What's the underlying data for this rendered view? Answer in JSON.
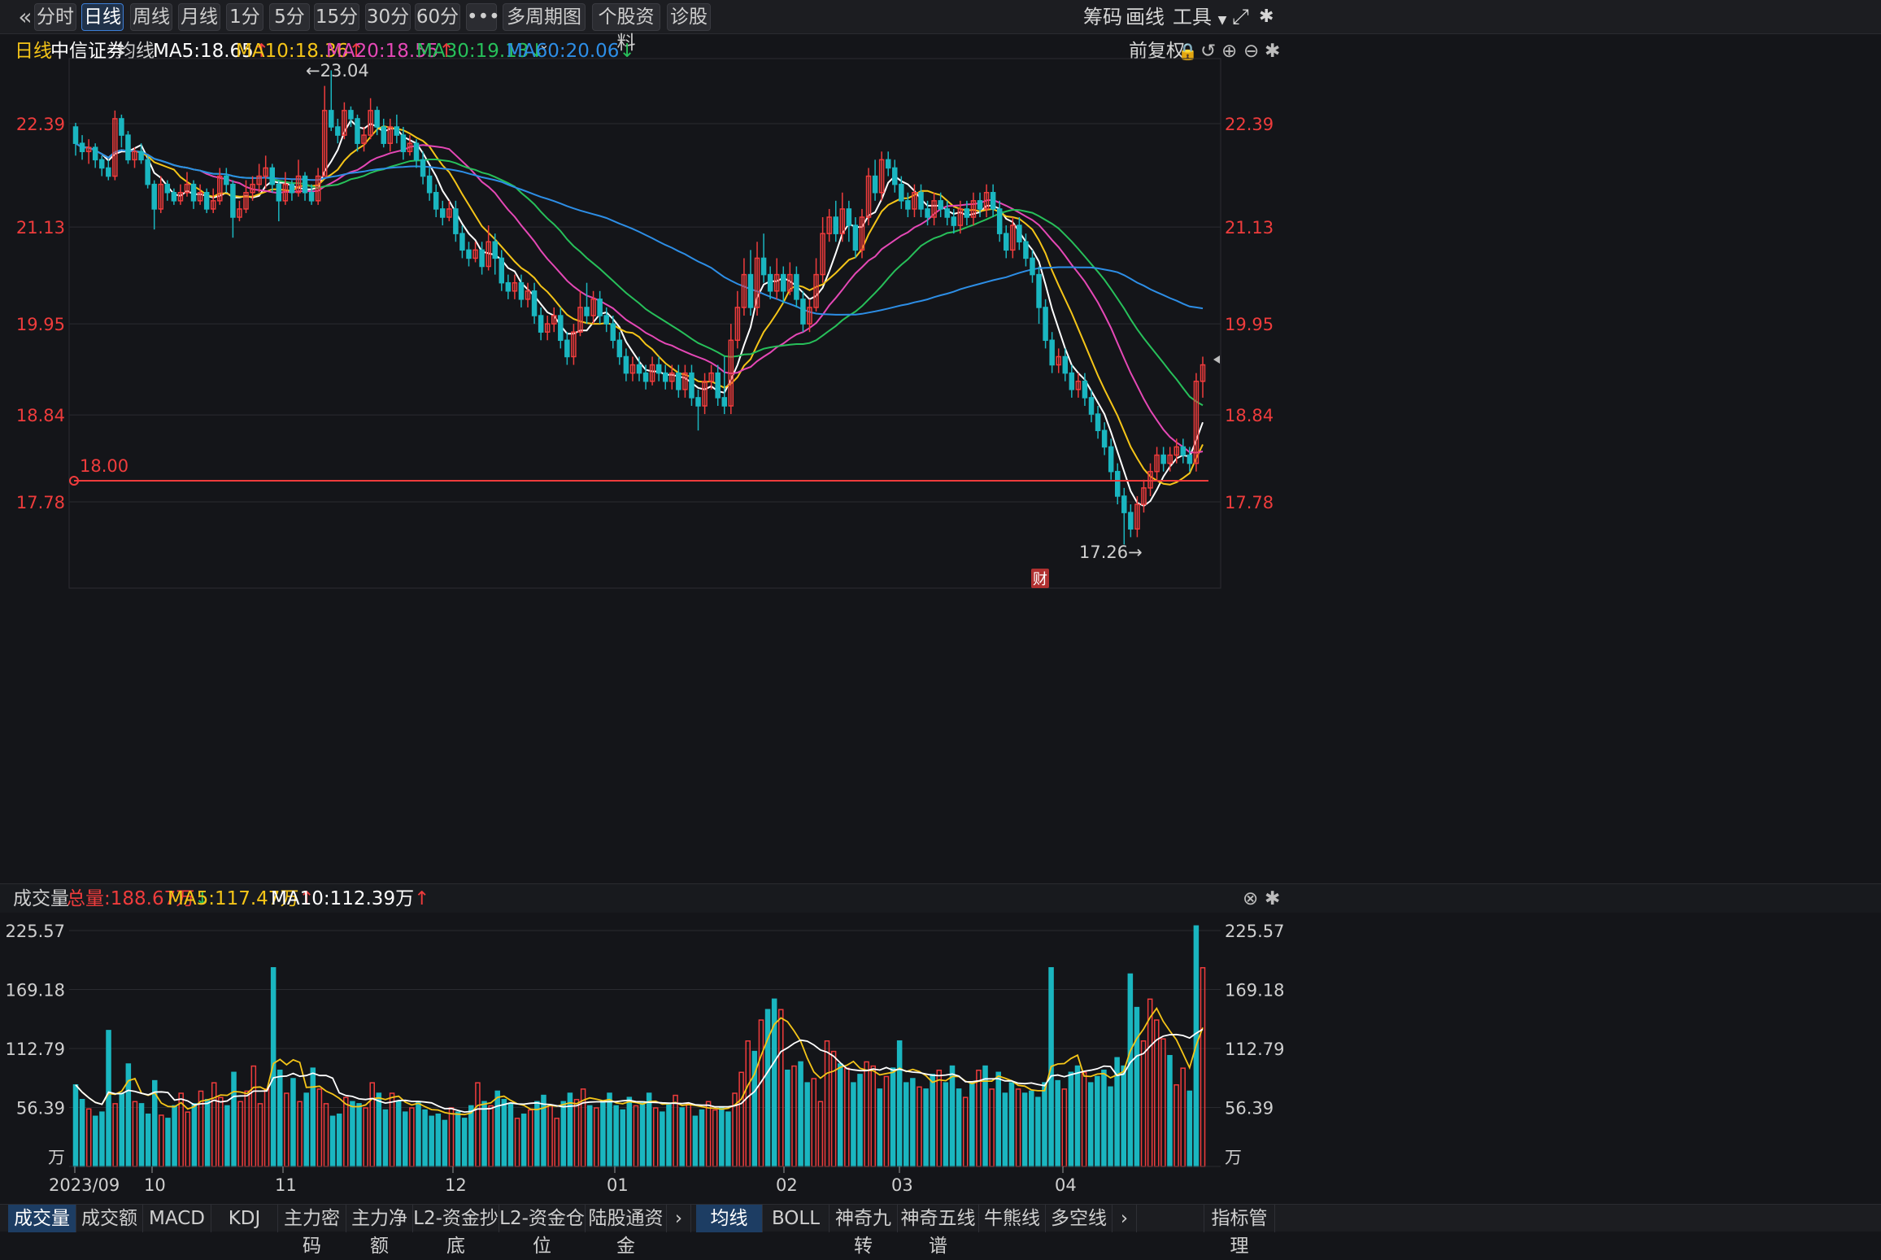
{
  "toolbar": {
    "tabs": [
      "分时",
      "日线",
      "周线",
      "月线",
      "1分",
      "5分",
      "15分",
      "30分",
      "60分"
    ],
    "more": "•••",
    "multi_period": "多周期图",
    "stock_info": "个股资料",
    "diagnose": "诊股",
    "right": [
      "筹码",
      "画线",
      "工具"
    ]
  },
  "ma_legend": {
    "period": "日线",
    "stock": "中信证券",
    "label": "均线",
    "ma5": "MA5:18.65",
    "ma10": "MA10:18.36",
    "ma20": "MA20:18.55",
    "ma30": "MA30:19.13",
    "ma60": "MA60:20.06",
    "adjust": "前复权"
  },
  "price_axis": {
    "ticks": [
      "22.39",
      "21.13",
      "19.95",
      "18.84",
      "17.78"
    ],
    "high_label": "←23.04",
    "low_label": "17.26→",
    "line_label": "18.00",
    "finance_badge": "财"
  },
  "volume_header": {
    "title": "成交量",
    "total": "总量:188.67万",
    "ma5": "MA5:117.47万",
    "ma10": "MA10:112.39万"
  },
  "volume_axis": {
    "ticks": [
      "225.57",
      "169.18",
      "112.79",
      "56.39"
    ],
    "unit": "万"
  },
  "date_axis": [
    "2023/09",
    "10",
    "11",
    "12",
    "01",
    "02",
    "03",
    "04"
  ],
  "bottom_tabs_left": [
    "成交量",
    "成交额",
    "MACD",
    "KDJ",
    "主力密码",
    "主力净额",
    "L2-资金抄底",
    "L2-资金仓位",
    "陆股通资金"
  ],
  "bottom_tabs_right": [
    "均线",
    "BOLL",
    "神奇九转",
    "神奇五线谱",
    "牛熊线",
    "多空线"
  ],
  "indicator_manage": "指标管理",
  "colors": {
    "up": "#ef3c3c",
    "down": "#1ab6c0",
    "ma5": "#ffffff",
    "ma10": "#f5c518",
    "ma20": "#e548b6",
    "ma30": "#27c05a",
    "ma60": "#2d8ee6"
  },
  "chart_data": {
    "type": "candlestick",
    "price_range": [
      16.6,
      23.6
    ],
    "volume_range": [
      0,
      240
    ],
    "candles": [
      [
        22.35,
        22.15,
        22.4,
        22.0
      ],
      [
        22.15,
        22.05,
        22.25,
        21.95
      ],
      [
        22.05,
        22.1,
        22.2,
        21.9
      ],
      [
        22.1,
        21.95,
        22.15,
        21.85
      ],
      [
        21.95,
        21.85,
        22.0,
        21.75
      ],
      [
        21.85,
        21.75,
        21.95,
        21.7
      ],
      [
        21.75,
        22.45,
        22.55,
        21.7
      ],
      [
        22.45,
        22.25,
        22.5,
        22.1
      ],
      [
        22.25,
        21.95,
        22.3,
        21.9
      ],
      [
        21.95,
        22.05,
        22.1,
        21.85
      ],
      [
        22.05,
        21.95,
        22.15,
        21.9
      ],
      [
        21.95,
        21.65,
        22.0,
        21.6
      ],
      [
        21.65,
        21.35,
        21.7,
        21.1
      ],
      [
        21.35,
        21.65,
        21.75,
        21.3
      ],
      [
        21.65,
        21.55,
        21.7,
        21.45
      ],
      [
        21.55,
        21.45,
        21.6,
        21.4
      ],
      [
        21.45,
        21.55,
        21.65,
        21.4
      ],
      [
        21.55,
        21.65,
        21.8,
        21.5
      ],
      [
        21.65,
        21.45,
        21.7,
        21.35
      ],
      [
        21.45,
        21.55,
        21.65,
        21.4
      ],
      [
        21.55,
        21.35,
        21.6,
        21.3
      ],
      [
        21.35,
        21.45,
        21.6,
        21.3
      ],
      [
        21.45,
        21.75,
        21.85,
        21.4
      ],
      [
        21.75,
        21.65,
        21.85,
        21.55
      ],
      [
        21.65,
        21.25,
        21.7,
        21.0
      ],
      [
        21.25,
        21.35,
        21.45,
        21.2
      ],
      [
        21.35,
        21.55,
        21.7,
        21.3
      ],
      [
        21.55,
        21.65,
        21.75,
        21.45
      ],
      [
        21.65,
        21.75,
        21.9,
        21.55
      ],
      [
        21.75,
        21.85,
        22.0,
        21.6
      ],
      [
        21.85,
        21.65,
        21.9,
        21.55
      ],
      [
        21.65,
        21.45,
        21.7,
        21.2
      ],
      [
        21.45,
        21.65,
        21.8,
        21.4
      ],
      [
        21.65,
        21.55,
        21.7,
        21.45
      ],
      [
        21.55,
        21.75,
        21.95,
        21.5
      ],
      [
        21.75,
        21.55,
        21.8,
        21.45
      ],
      [
        21.55,
        21.45,
        21.65,
        21.4
      ],
      [
        21.45,
        21.75,
        21.85,
        21.4
      ],
      [
        21.75,
        22.55,
        22.85,
        21.75
      ],
      [
        22.55,
        22.35,
        23.04,
        22.3
      ],
      [
        22.35,
        22.25,
        22.45,
        22.15
      ],
      [
        22.25,
        22.55,
        22.65,
        22.2
      ],
      [
        22.55,
        22.45,
        22.6,
        22.35
      ],
      [
        22.45,
        22.15,
        22.5,
        22.05
      ],
      [
        22.15,
        22.25,
        22.35,
        22.05
      ],
      [
        22.25,
        22.55,
        22.7,
        22.2
      ],
      [
        22.55,
        22.35,
        22.6,
        22.25
      ],
      [
        22.35,
        22.15,
        22.45,
        22.1
      ],
      [
        22.15,
        22.35,
        22.45,
        22.05
      ],
      [
        22.35,
        22.25,
        22.5,
        22.15
      ],
      [
        22.25,
        22.05,
        22.35,
        21.95
      ],
      [
        22.05,
        22.15,
        22.25,
        22.0
      ],
      [
        22.15,
        21.95,
        22.2,
        21.85
      ],
      [
        21.95,
        21.75,
        22.05,
        21.65
      ],
      [
        21.75,
        21.55,
        21.85,
        21.45
      ],
      [
        21.55,
        21.35,
        21.65,
        21.25
      ],
      [
        21.35,
        21.25,
        21.45,
        21.15
      ],
      [
        21.25,
        21.35,
        21.45,
        21.2
      ],
      [
        21.35,
        21.05,
        21.45,
        20.95
      ],
      [
        21.05,
        20.85,
        21.15,
        20.75
      ],
      [
        20.85,
        20.75,
        20.95,
        20.65
      ],
      [
        20.75,
        20.85,
        20.95,
        20.7
      ],
      [
        20.85,
        20.65,
        20.95,
        20.55
      ],
      [
        20.65,
        20.95,
        21.15,
        20.6
      ],
      [
        20.95,
        20.75,
        21.05,
        20.55
      ],
      [
        20.75,
        20.45,
        20.85,
        20.35
      ],
      [
        20.45,
        20.35,
        20.55,
        20.25
      ],
      [
        20.35,
        20.45,
        20.55,
        20.25
      ],
      [
        20.45,
        20.25,
        20.55,
        20.15
      ],
      [
        20.25,
        20.35,
        20.45,
        20.15
      ],
      [
        20.35,
        20.05,
        20.45,
        19.95
      ],
      [
        20.05,
        19.85,
        20.15,
        19.75
      ],
      [
        19.85,
        19.95,
        20.05,
        19.75
      ],
      [
        19.95,
        20.05,
        20.15,
        19.85
      ],
      [
        20.05,
        19.75,
        20.15,
        19.65
      ],
      [
        19.75,
        19.55,
        19.85,
        19.45
      ],
      [
        19.55,
        19.85,
        19.95,
        19.45
      ],
      [
        19.85,
        20.15,
        20.35,
        19.8
      ],
      [
        20.15,
        20.05,
        20.45,
        19.95
      ],
      [
        20.05,
        20.25,
        20.35,
        19.95
      ],
      [
        20.25,
        20.05,
        20.35,
        19.95
      ],
      [
        20.05,
        19.95,
        20.15,
        19.85
      ],
      [
        19.95,
        19.75,
        20.05,
        19.65
      ],
      [
        19.75,
        19.55,
        19.85,
        19.45
      ],
      [
        19.55,
        19.35,
        19.65,
        19.25
      ],
      [
        19.35,
        19.45,
        19.55,
        19.25
      ],
      [
        19.45,
        19.35,
        19.55,
        19.25
      ],
      [
        19.35,
        19.25,
        19.45,
        19.15
      ],
      [
        19.25,
        19.45,
        19.55,
        19.2
      ],
      [
        19.45,
        19.35,
        19.55,
        19.25
      ],
      [
        19.35,
        19.25,
        19.45,
        19.15
      ],
      [
        19.25,
        19.35,
        19.45,
        19.15
      ],
      [
        19.35,
        19.15,
        19.45,
        19.05
      ],
      [
        19.15,
        19.35,
        19.45,
        19.05
      ],
      [
        19.35,
        19.05,
        19.45,
        18.95
      ],
      [
        19.05,
        18.95,
        19.15,
        18.65
      ],
      [
        18.95,
        19.25,
        19.35,
        18.85
      ],
      [
        19.25,
        19.35,
        19.45,
        19.15
      ],
      [
        19.35,
        19.05,
        19.45,
        18.95
      ],
      [
        19.05,
        18.95,
        19.55,
        18.85
      ],
      [
        18.95,
        19.75,
        19.95,
        18.85
      ],
      [
        19.75,
        20.15,
        20.35,
        19.65
      ],
      [
        20.15,
        20.55,
        20.75,
        20.05
      ],
      [
        20.55,
        20.15,
        20.85,
        20.05
      ],
      [
        20.15,
        20.75,
        20.95,
        20.05
      ],
      [
        20.75,
        20.55,
        21.05,
        20.45
      ],
      [
        20.55,
        20.35,
        20.65,
        20.25
      ],
      [
        20.35,
        20.55,
        20.75,
        20.25
      ],
      [
        20.55,
        20.35,
        20.65,
        20.2
      ],
      [
        20.35,
        20.55,
        20.7,
        20.3
      ],
      [
        20.55,
        20.25,
        20.65,
        20.15
      ],
      [
        20.25,
        19.95,
        20.35,
        19.85
      ],
      [
        19.95,
        20.15,
        20.25,
        19.85
      ],
      [
        20.15,
        20.55,
        20.75,
        20.1
      ],
      [
        20.55,
        21.05,
        21.25,
        20.45
      ],
      [
        21.05,
        21.25,
        21.35,
        20.95
      ],
      [
        21.25,
        21.05,
        21.45,
        20.95
      ],
      [
        21.05,
        21.35,
        21.55,
        20.95
      ],
      [
        21.35,
        21.15,
        21.45,
        20.95
      ],
      [
        21.15,
        20.85,
        21.25,
        20.75
      ],
      [
        20.85,
        21.25,
        21.35,
        20.75
      ],
      [
        21.25,
        21.75,
        21.85,
        21.15
      ],
      [
        21.75,
        21.55,
        21.95,
        21.45
      ],
      [
        21.55,
        21.95,
        22.05,
        21.45
      ],
      [
        21.95,
        21.85,
        22.05,
        21.75
      ],
      [
        21.85,
        21.65,
        21.95,
        21.55
      ],
      [
        21.65,
        21.45,
        21.75,
        21.35
      ],
      [
        21.45,
        21.35,
        21.55,
        21.25
      ],
      [
        21.35,
        21.55,
        21.65,
        21.25
      ],
      [
        21.55,
        21.35,
        21.65,
        21.25
      ],
      [
        21.35,
        21.25,
        21.45,
        21.15
      ],
      [
        21.25,
        21.45,
        21.55,
        21.15
      ],
      [
        21.45,
        21.35,
        21.55,
        21.25
      ],
      [
        21.35,
        21.25,
        21.45,
        21.15
      ],
      [
        21.25,
        21.15,
        21.35,
        21.05
      ],
      [
        21.15,
        21.35,
        21.45,
        21.05
      ],
      [
        21.35,
        21.25,
        21.45,
        21.15
      ],
      [
        21.25,
        21.45,
        21.55,
        21.15
      ],
      [
        21.45,
        21.35,
        21.55,
        21.25
      ],
      [
        21.35,
        21.55,
        21.65,
        21.25
      ],
      [
        21.55,
        21.35,
        21.65,
        21.25
      ],
      [
        21.35,
        21.05,
        21.45,
        20.95
      ],
      [
        21.05,
        20.85,
        21.15,
        20.75
      ],
      [
        20.85,
        21.15,
        21.25,
        20.75
      ],
      [
        21.15,
        20.95,
        21.25,
        20.85
      ],
      [
        20.95,
        20.75,
        21.05,
        20.65
      ],
      [
        20.75,
        20.55,
        20.85,
        20.45
      ],
      [
        20.55,
        20.15,
        20.65,
        19.95
      ],
      [
        20.15,
        19.75,
        20.25,
        19.65
      ],
      [
        19.75,
        19.45,
        19.85,
        19.35
      ],
      [
        19.45,
        19.55,
        19.65,
        19.35
      ],
      [
        19.55,
        19.35,
        19.65,
        19.25
      ],
      [
        19.35,
        19.15,
        19.45,
        19.05
      ],
      [
        19.15,
        19.25,
        19.35,
        19.05
      ],
      [
        19.25,
        19.05,
        19.35,
        18.95
      ],
      [
        19.05,
        18.85,
        19.15,
        18.75
      ],
      [
        18.85,
        18.65,
        18.95,
        18.55
      ],
      [
        18.65,
        18.45,
        18.75,
        18.35
      ],
      [
        18.45,
        18.15,
        18.55,
        18.05
      ],
      [
        18.15,
        17.85,
        18.25,
        17.75
      ],
      [
        17.85,
        17.65,
        17.95,
        17.26
      ],
      [
        17.65,
        17.45,
        17.75,
        17.35
      ],
      [
        17.45,
        17.75,
        17.85,
        17.35
      ],
      [
        17.75,
        17.95,
        18.05,
        17.65
      ],
      [
        17.95,
        18.15,
        18.25,
        17.85
      ],
      [
        18.15,
        18.35,
        18.45,
        18.05
      ],
      [
        18.35,
        18.25,
        18.45,
        18.15
      ],
      [
        18.25,
        18.35,
        18.45,
        18.15
      ],
      [
        18.35,
        18.45,
        18.55,
        18.25
      ],
      [
        18.45,
        18.35,
        18.55,
        18.25
      ],
      [
        18.35,
        18.25,
        18.45,
        18.15
      ],
      [
        18.25,
        19.25,
        19.35,
        18.15
      ],
      [
        19.25,
        19.45,
        19.55,
        19.05
      ]
    ],
    "volumes": [
      78,
      64,
      55,
      48,
      52,
      130,
      60,
      70,
      98,
      62,
      60,
      50,
      82,
      49,
      46,
      58,
      70,
      52,
      60,
      72,
      64,
      80,
      66,
      58,
      90,
      62,
      72,
      96,
      60,
      74,
      190,
      92,
      70,
      84,
      62,
      70,
      94,
      74,
      60,
      48,
      50,
      66,
      62,
      60,
      56,
      80,
      70,
      54,
      70,
      62,
      52,
      56,
      62,
      54,
      48,
      50,
      44,
      56,
      52,
      46,
      58,
      80,
      62,
      58,
      72,
      64,
      60,
      46,
      50,
      54,
      62,
      68,
      58,
      46,
      62,
      70,
      64,
      74,
      58,
      56,
      62,
      70,
      58,
      54,
      66,
      58,
      62,
      70,
      56,
      52,
      60,
      68,
      56,
      60,
      48,
      54,
      62,
      54,
      56,
      52,
      70,
      90,
      120,
      110,
      140,
      150,
      160,
      150,
      92,
      96,
      100,
      80,
      84,
      62,
      120,
      110,
      98,
      94,
      80,
      88,
      100,
      96,
      74,
      86,
      94,
      120,
      80,
      84,
      76,
      74,
      88,
      92,
      80,
      96,
      74,
      66,
      80,
      92,
      96,
      74,
      90,
      70,
      80,
      74,
      70,
      72,
      66,
      80,
      190,
      82,
      74,
      90,
      96,
      90,
      80,
      86,
      92,
      76,
      104,
      96,
      184,
      152,
      120,
      160,
      140,
      122,
      106,
      78,
      94,
      72,
      230,
      190
    ],
    "ma_levels": {
      "MA5": 18.65,
      "MA10": 18.36,
      "MA20": 18.55,
      "MA30": 19.13,
      "MA60": 20.06
    },
    "volume_ma": {
      "MA5": 117.47,
      "MA10": 112.39
    },
    "reference_line": 18.0
  }
}
